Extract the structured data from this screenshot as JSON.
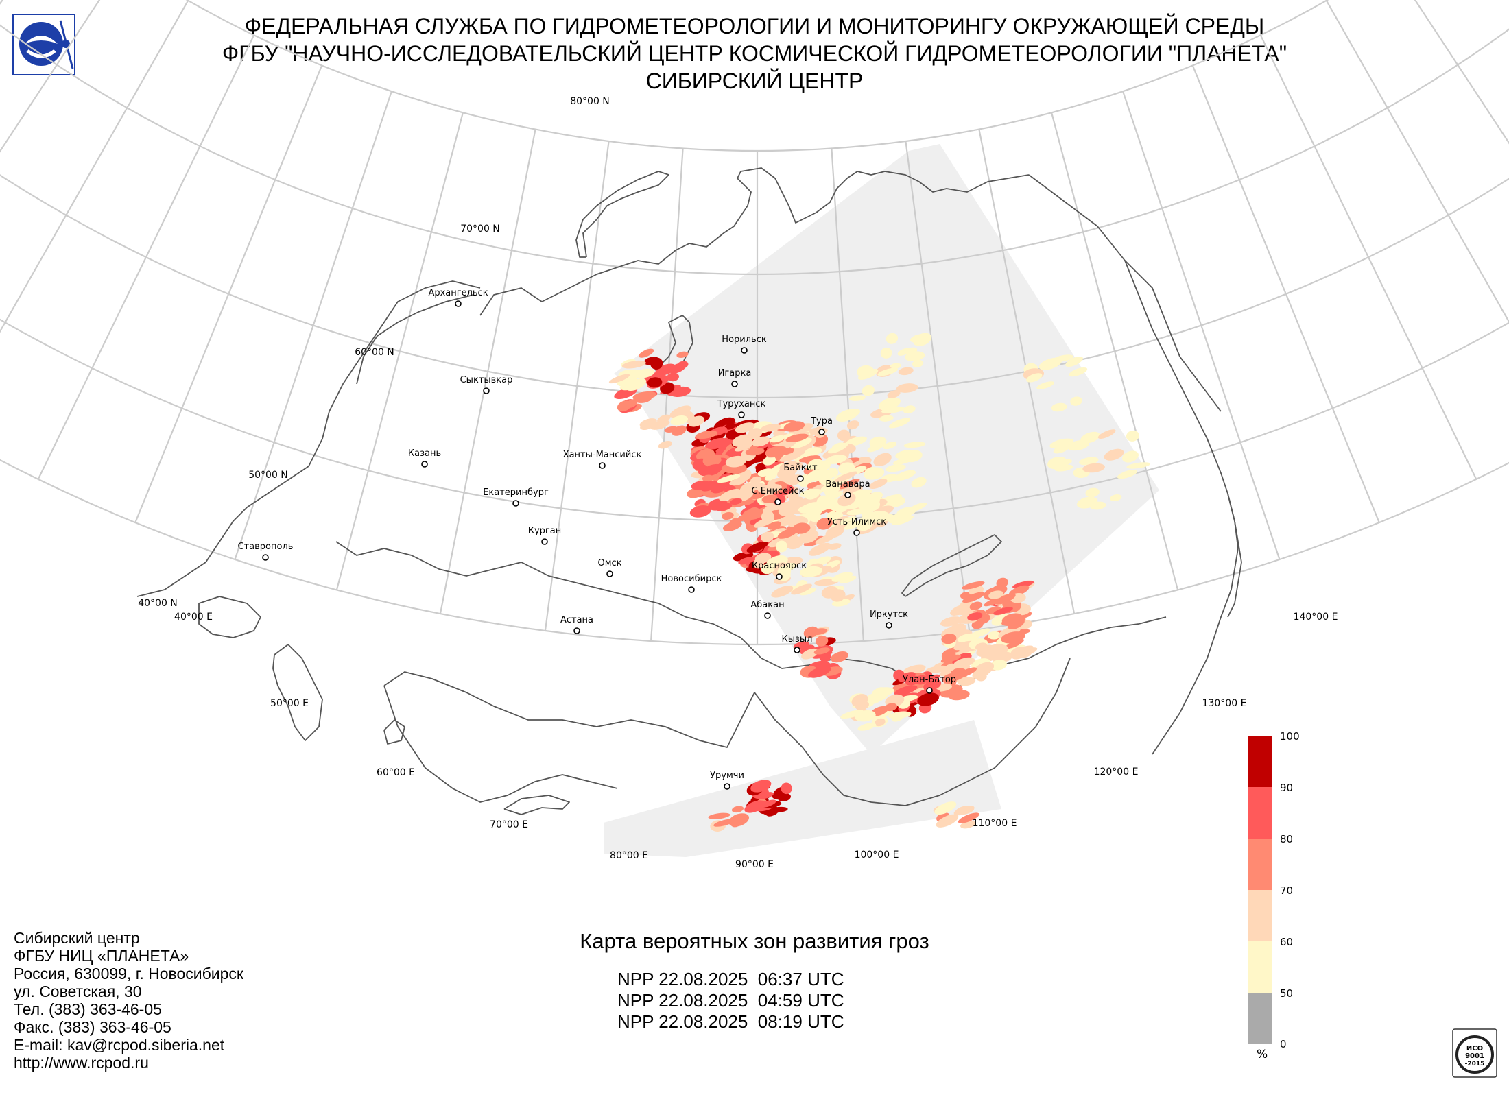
{
  "header": {
    "line1": "ФЕДЕРАЛЬНАЯ СЛУЖБА ПО ГИДРОМЕТЕОРОЛОГИИ И МОНИТОРИНГУ ОКРУЖАЮЩЕЙ СРЕДЫ",
    "line2": "ФГБУ \"НАУЧНО-ИССЛЕДОВАТЕЛЬСКИЙ ЦЕНТР КОСМИЧЕСКОЙ ГИДРОМЕТЕОРОЛОГИИ \"ПЛАНЕТА\"",
    "line3": "СИБИРСКИЙ ЦЕНТР"
  },
  "logo": {
    "icon": "roshydromet-logo-icon",
    "color": "#1d3fa8"
  },
  "map": {
    "projection": "conic",
    "lat_labels": [
      "80°00 N",
      "70°00 N",
      "60°00 N",
      "50°00 N",
      "40°00 N"
    ],
    "lon_labels": [
      "40°00 E",
      "50°00 E",
      "60°00 E",
      "70°00 E",
      "80°00 E",
      "90°00 E",
      "100°00 E",
      "110°00 E",
      "120°00 E",
      "130°00 E",
      "140°00 E"
    ],
    "cities": [
      {
        "name": "Архангельск",
        "lat": 64.5,
        "lon": 40.5
      },
      {
        "name": "Сыктывкар",
        "lat": 61.7,
        "lon": 50.8
      },
      {
        "name": "Казань",
        "lat": 55.8,
        "lon": 49.1
      },
      {
        "name": "Екатеринбург",
        "lat": 56.8,
        "lon": 60.6
      },
      {
        "name": "Курган",
        "lat": 55.4,
        "lon": 65.3
      },
      {
        "name": "Ставрополь",
        "lat": 45.0,
        "lon": 42.0
      },
      {
        "name": "Ханты-Мансийск",
        "lat": 61.0,
        "lon": 69.0
      },
      {
        "name": "Омск",
        "lat": 55.0,
        "lon": 73.4
      },
      {
        "name": "Астана",
        "lat": 51.2,
        "lon": 71.4
      },
      {
        "name": "Новосибирск",
        "lat": 55.0,
        "lon": 82.9
      },
      {
        "name": "Норильск",
        "lat": 69.3,
        "lon": 88.2
      },
      {
        "name": "Игарка",
        "lat": 67.5,
        "lon": 86.6
      },
      {
        "name": "Туруханск",
        "lat": 65.8,
        "lon": 87.9
      },
      {
        "name": "Тура",
        "lat": 64.3,
        "lon": 100.2
      },
      {
        "name": "Байкит",
        "lat": 61.7,
        "lon": 96.4
      },
      {
        "name": "Ванавара",
        "lat": 60.3,
        "lon": 102.3
      },
      {
        "name": "С.Енисейск",
        "lat": 60.5,
        "lon": 90.0
      },
      {
        "name": "Усть-Илимск",
        "lat": 58.0,
        "lon": 102.7
      },
      {
        "name": "Красноярск",
        "lat": 56.0,
        "lon": 92.9
      },
      {
        "name": "Абакан",
        "lat": 53.7,
        "lon": 91.4
      },
      {
        "name": "Иркутск",
        "lat": 52.3,
        "lon": 104.3
      },
      {
        "name": "Кызыл",
        "lat": 51.7,
        "lon": 94.4
      },
      {
        "name": "Улан-Батор",
        "lat": 47.9,
        "lon": 106.9
      },
      {
        "name": "Урумчи",
        "lat": 43.8,
        "lon": 87.6
      }
    ]
  },
  "legend": {
    "title": "%",
    "ticks": [
      "100",
      "90",
      "80",
      "70",
      "60",
      "50",
      "0"
    ],
    "colors": [
      "#c00000",
      "#ff5a5a",
      "#ff8a72",
      "#ffd8b8",
      "#fff7c8",
      "#aaaaaa"
    ]
  },
  "caption": "Карта вероятных зон развития гроз",
  "passes": [
    "NPP 22.08.2025  06:37 UTC",
    "NPP 22.08.2025  04:59 UTC",
    "NPP 22.08.2025  08:19 UTC"
  ],
  "footer": {
    "lines": [
      "Сибирский центр",
      "ФГБУ НИЦ «ПЛАНЕТА»",
      "Россия, 630099, г. Новосибирск",
      "ул. Советская, 30",
      "Тел. (383) 363-46-05",
      "Факс. (383) 363-46-05",
      "E-mail: kav@rcpod.siberia.net",
      "http://www.rcpod.ru"
    ]
  },
  "iso_badge": {
    "icon": "iso-certification-icon",
    "text": [
      "ИСО",
      "9001",
      "-2015"
    ]
  }
}
